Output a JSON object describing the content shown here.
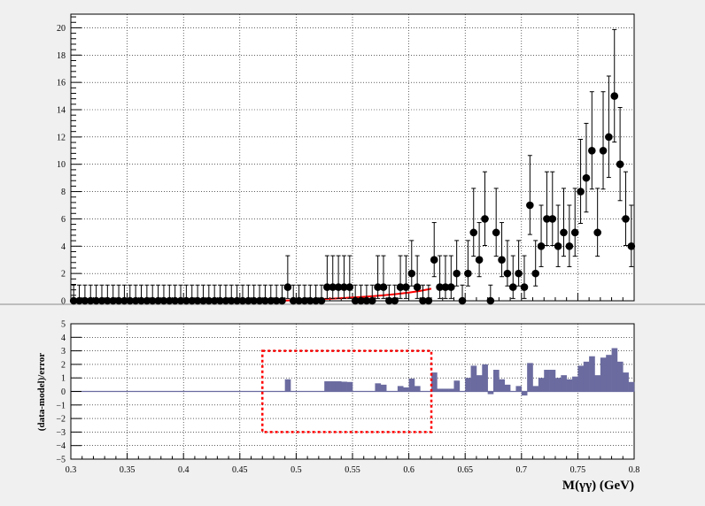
{
  "chart_data": [
    {
      "type": "scatter",
      "panel": "top",
      "ylim": [
        0,
        21
      ],
      "xlim": [
        0.3,
        0.8
      ],
      "yticks": [
        "0",
        "2",
        "4",
        "6",
        "8",
        "10",
        "12",
        "14",
        "16",
        "18",
        "20"
      ],
      "grid": true,
      "x": [
        0.3025,
        0.3075,
        0.3125,
        0.3175,
        0.3225,
        0.3275,
        0.3325,
        0.3375,
        0.3425,
        0.3475,
        0.3525,
        0.3575,
        0.3625,
        0.3675,
        0.3725,
        0.3775,
        0.3825,
        0.3875,
        0.3925,
        0.3975,
        0.4025,
        0.4075,
        0.4125,
        0.4175,
        0.4225,
        0.4275,
        0.4325,
        0.4375,
        0.4425,
        0.4475,
        0.4525,
        0.4575,
        0.4625,
        0.4675,
        0.4725,
        0.4775,
        0.4825,
        0.4875,
        0.4925,
        0.4975,
        0.5025,
        0.5075,
        0.5125,
        0.5175,
        0.5225,
        0.5275,
        0.5325,
        0.5375,
        0.5425,
        0.5475,
        0.5525,
        0.5575,
        0.5625,
        0.5675,
        0.5725,
        0.5775,
        0.5825,
        0.5875,
        0.5925,
        0.5975,
        0.6025,
        0.6075,
        0.6125,
        0.6175,
        0.6225,
        0.6275,
        0.6325,
        0.6375,
        0.6425,
        0.6475,
        0.6525,
        0.6575,
        0.6625,
        0.6675,
        0.6725,
        0.6775,
        0.6825,
        0.6875,
        0.6925,
        0.6975,
        0.7025,
        0.7075,
        0.7125,
        0.7175,
        0.7225,
        0.7275,
        0.7325,
        0.7375,
        0.7425,
        0.7475,
        0.7525,
        0.7575,
        0.7625,
        0.7675,
        0.7725,
        0.7775,
        0.7825,
        0.7875,
        0.7925,
        0.7975
      ],
      "y": [
        0,
        0,
        0,
        0,
        0,
        0,
        0,
        0,
        0,
        0,
        0,
        0,
        0,
        0,
        0,
        0,
        0,
        0,
        0,
        0,
        0,
        0,
        0,
        0,
        0,
        0,
        0,
        0,
        0,
        0,
        0,
        0,
        0,
        0,
        0,
        0,
        0,
        0,
        1,
        0,
        0,
        0,
        0,
        0,
        0,
        1,
        1,
        1,
        1,
        1,
        0,
        0,
        0,
        0,
        1,
        1,
        0,
        0,
        1,
        1,
        2,
        1,
        0,
        0,
        3,
        1,
        1,
        1,
        2,
        0,
        2,
        5,
        3,
        6,
        0,
        5,
        3,
        2,
        1,
        2,
        1,
        7,
        2,
        4,
        6,
        6,
        4,
        5,
        4,
        5,
        8,
        9,
        11,
        5,
        11,
        12,
        15,
        10,
        6,
        4
      ],
      "model_curve": {
        "x": [
          0.49,
          0.5,
          0.51,
          0.52,
          0.53,
          0.54,
          0.55,
          0.56,
          0.57,
          0.58,
          0.59,
          0.6,
          0.61,
          0.62
        ],
        "y": [
          0.02,
          0.05,
          0.08,
          0.11,
          0.15,
          0.19,
          0.24,
          0.29,
          0.35,
          0.42,
          0.5,
          0.6,
          0.72,
          0.88
        ],
        "color": "#ff0000"
      },
      "marker_color": "#000000"
    },
    {
      "type": "bar",
      "panel": "bottom",
      "ylabel": "(data-model)/error",
      "xlabel": "M(γγ) (GeV)",
      "xlim": [
        0.3,
        0.8
      ],
      "ylim": [
        -5,
        5
      ],
      "xticks": [
        "0.3",
        "0.35",
        "0.4",
        "0.45",
        "0.5",
        "0.55",
        "0.6",
        "0.65",
        "0.7",
        "0.75",
        "0.8"
      ],
      "yticks": [
        "−5",
        "−4",
        "−3",
        "−2",
        "−1",
        "0",
        "1",
        "2",
        "3",
        "4",
        "5"
      ],
      "grid": true,
      "x": [
        0.3025,
        0.3075,
        0.3125,
        0.3175,
        0.3225,
        0.3275,
        0.3325,
        0.3375,
        0.3425,
        0.3475,
        0.3525,
        0.3575,
        0.3625,
        0.3675,
        0.3725,
        0.3775,
        0.3825,
        0.3875,
        0.3925,
        0.3975,
        0.4025,
        0.4075,
        0.4125,
        0.4175,
        0.4225,
        0.4275,
        0.4325,
        0.4375,
        0.4425,
        0.4475,
        0.4525,
        0.4575,
        0.4625,
        0.4675,
        0.4725,
        0.4775,
        0.4825,
        0.4875,
        0.4925,
        0.4975,
        0.5025,
        0.5075,
        0.5125,
        0.5175,
        0.5225,
        0.5275,
        0.5325,
        0.5375,
        0.5425,
        0.5475,
        0.5525,
        0.5575,
        0.5625,
        0.5675,
        0.5725,
        0.5775,
        0.5825,
        0.5875,
        0.5925,
        0.5975,
        0.6025,
        0.6075,
        0.6125,
        0.6175,
        0.6225,
        0.6275,
        0.6325,
        0.6375,
        0.6425,
        0.6475,
        0.6525,
        0.6575,
        0.6625,
        0.6675,
        0.6725,
        0.6775,
        0.6825,
        0.6875,
        0.6925,
        0.6975,
        0.7025,
        0.7075,
        0.7125,
        0.7175,
        0.7225,
        0.7275,
        0.7325,
        0.7375,
        0.7425,
        0.7475,
        0.7525,
        0.7575,
        0.7625,
        0.7675,
        0.7725,
        0.7775,
        0.7825,
        0.7875,
        0.7925,
        0.7975
      ],
      "values": [
        0,
        0,
        0,
        0,
        0,
        0,
        0,
        0,
        0,
        0,
        0,
        0,
        0,
        0,
        0,
        0,
        0,
        0,
        0,
        0,
        0,
        0,
        0,
        0,
        0,
        0,
        0,
        0,
        0,
        0,
        0,
        0,
        0,
        0,
        0,
        0,
        0,
        0,
        0.9,
        0,
        0,
        0,
        0,
        0,
        0,
        0.75,
        0.75,
        0.75,
        0.72,
        0.7,
        0,
        0,
        0,
        0,
        0.6,
        0.5,
        0,
        0,
        0.4,
        0.3,
        0.95,
        0.4,
        0,
        0,
        1.4,
        0.2,
        0.2,
        0.2,
        0.8,
        0,
        1.0,
        1.9,
        1.2,
        2.0,
        -0.2,
        1.6,
        0.9,
        0.5,
        0,
        0.4,
        -0.3,
        2.1,
        0.4,
        1.0,
        1.6,
        1.6,
        1.0,
        1.2,
        0.9,
        1.1,
        1.9,
        2.2,
        2.6,
        1.2,
        2.5,
        2.7,
        3.2,
        2.2,
        1.4,
        0.7
      ],
      "bar_color": "#6b6ba0",
      "highlight_box": {
        "x0": 0.47,
        "x1": 0.62,
        "y0": -3,
        "y1": 3,
        "color": "#ff0000"
      }
    }
  ]
}
